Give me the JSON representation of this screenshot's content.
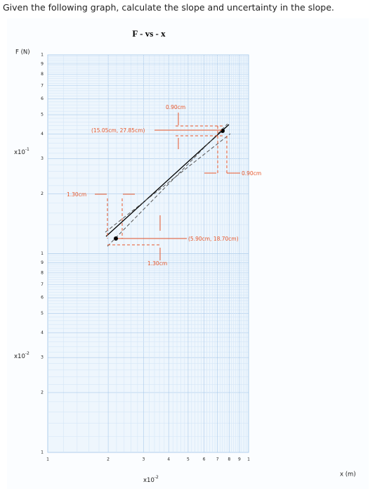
{
  "question": "Given the following graph, calculate the slope and uncertainty in the slope.",
  "graph": {
    "title": "F - vs - x",
    "y_axis_label": "F (N)",
    "x_axis_label": "x (m)",
    "y_multipliers": [
      {
        "base": "x10",
        "exp": "-1"
      },
      {
        "base": "x10",
        "exp": "-2"
      }
    ],
    "x_multiplier": {
      "base": "x10",
      "exp": "-2"
    },
    "y_ticks": [
      [
        "1",
        "9",
        "8",
        "7",
        "6",
        "5",
        "4",
        "3",
        "2"
      ],
      [
        "1",
        "9",
        "8",
        "7",
        "6",
        "5",
        "4",
        "3",
        "2"
      ],
      [
        "1"
      ]
    ],
    "x_ticks": [
      "1",
      "2",
      "3",
      "4",
      "5",
      "6",
      "7",
      "8",
      "9",
      "1"
    ],
    "annotations": [
      "0.90cm",
      "(15.05cm, 27.85cm)",
      "0.90cm",
      "1.30cm",
      "(5.90cm, 18.70cm)",
      "1.30cm"
    ]
  }
}
